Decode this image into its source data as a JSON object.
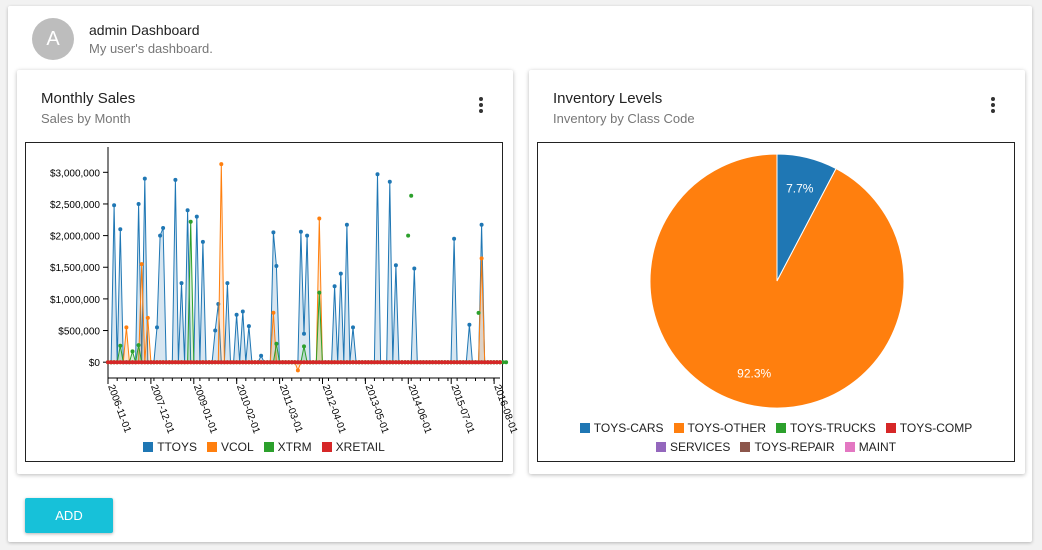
{
  "header": {
    "avatar_letter": "A",
    "title": "admin Dashboard",
    "subtitle": "My user's dashboard."
  },
  "sales_card": {
    "title": "Monthly Sales",
    "subtitle": "Sales by Month",
    "menu_icon": "more-vert-icon"
  },
  "inventory_card": {
    "title": "Inventory Levels",
    "subtitle": "Inventory by Class Code",
    "menu_icon": "more-vert-icon"
  },
  "add_button": "ADD",
  "chart_data": [
    {
      "type": "line",
      "title": "",
      "xlabel": "",
      "ylabel": "",
      "ylim": [
        -250000,
        3400000
      ],
      "yticks": [
        "$0",
        "$500,000",
        "$1,000,000",
        "$1,500,000",
        "$2,000,000",
        "$2,500,000",
        "$3,000,000"
      ],
      "ytick_values": [
        0,
        500000,
        1000000,
        1500000,
        2000000,
        2500000,
        3000000
      ],
      "xticks": [
        "2006-11-01",
        "2007-12-01",
        "2009-01-01",
        "2010-02-01",
        "2011-03-01",
        "2012-04-01",
        "2013-05-01",
        "2014-06-01",
        "2015-07-01",
        "2016-08-01"
      ],
      "legend_position": "bottom",
      "grid": false,
      "series": [
        {
          "name": "TTOYS",
          "color": "#1f77b4",
          "values": [
            0,
            0,
            2480000,
            0,
            2100000,
            0,
            0,
            0,
            0,
            0,
            2500000,
            0,
            2900000,
            0,
            0,
            0,
            550000,
            2000000,
            2120000,
            0,
            0,
            0,
            2880000,
            0,
            1250000,
            0,
            2400000,
            0,
            0,
            2300000,
            0,
            1900000,
            0,
            0,
            0,
            500000,
            920000,
            0,
            0,
            1250000,
            0,
            0,
            750000,
            0,
            800000,
            0,
            570000,
            0,
            0,
            0,
            100000,
            0,
            0,
            0,
            2050000,
            1520000,
            0,
            0,
            0,
            0,
            0,
            0,
            0,
            2060000,
            450000,
            2000000,
            0,
            0,
            0,
            0,
            0,
            0,
            0,
            0,
            1200000,
            0,
            1400000,
            0,
            2170000,
            0,
            550000,
            0,
            0,
            0,
            0,
            0,
            0,
            0,
            2970000,
            0,
            0,
            0,
            2850000,
            0,
            1530000,
            0,
            0,
            0,
            0,
            0,
            1480000,
            0,
            0,
            0,
            0,
            0,
            0,
            0,
            0,
            0,
            0,
            0,
            0,
            1950000,
            0,
            0,
            0,
            0,
            590000,
            0,
            0,
            0,
            2170000,
            0,
            0,
            0,
            0,
            0,
            0
          ]
        },
        {
          "name": "VCOL",
          "color": "#ff7f0e",
          "values": [
            0,
            0,
            0,
            0,
            0,
            0,
            550000,
            0,
            0,
            0,
            0,
            1550000,
            0,
            700000,
            0,
            0,
            0,
            0,
            0,
            0,
            0,
            0,
            0,
            0,
            0,
            0,
            0,
            0,
            0,
            0,
            0,
            0,
            0,
            0,
            0,
            0,
            0,
            3130000,
            0,
            0,
            0,
            0,
            0,
            0,
            0,
            0,
            0,
            0,
            0,
            0,
            0,
            0,
            0,
            0,
            780000,
            0,
            0,
            0,
            0,
            0,
            0,
            0,
            -130000,
            0,
            0,
            0,
            0,
            0,
            0,
            2270000,
            0,
            0,
            0,
            0,
            0,
            0,
            0,
            0,
            0,
            0,
            0,
            0,
            0,
            0,
            0,
            0,
            0,
            0,
            0,
            0,
            0,
            0,
            0,
            0,
            0,
            0,
            0,
            0,
            0,
            0,
            0,
            0,
            0,
            0,
            0,
            0,
            0,
            0,
            0,
            0,
            0,
            0,
            0,
            0,
            0,
            0,
            0,
            0,
            0,
            0,
            0,
            0,
            1640000,
            0,
            0,
            0,
            0,
            0,
            0
          ]
        },
        {
          "name": "XTRM",
          "color": "#2ca02c",
          "values": [
            0,
            0,
            0,
            0,
            260000,
            0,
            0,
            0,
            170000,
            0,
            270000,
            0,
            0,
            0,
            0,
            0,
            0,
            0,
            0,
            0,
            0,
            0,
            0,
            0,
            0,
            0,
            0,
            2220000,
            0,
            0,
            0,
            0,
            0,
            0,
            0,
            0,
            0,
            0,
            0,
            0,
            0,
            0,
            0,
            0,
            0,
            0,
            0,
            0,
            0,
            0,
            0,
            0,
            0,
            0,
            0,
            290000,
            0,
            0,
            0,
            0,
            0,
            0,
            0,
            0,
            250000,
            0,
            0,
            0,
            0,
            1100000,
            0,
            0,
            0,
            0,
            0,
            0,
            0,
            0,
            0,
            0,
            0,
            0,
            0,
            0,
            0,
            0,
            0,
            0,
            0,
            0,
            0,
            0,
            0,
            0,
            0,
            0,
            0,
            0,
            0,
            0,
            0,
            0,
            0,
            0,
            0,
            0,
            0,
            0,
            0,
            0,
            0,
            0,
            0,
            0,
            0,
            0,
            0,
            0,
            0,
            0,
            0,
            0,
            0,
            0,
            0,
            0,
            0,
            0,
            0,
            0,
            0
          ]
        },
        {
          "name": "XRETAIL",
          "color": "#d62728",
          "values": [
            0,
            0,
            0,
            0,
            0,
            0,
            0,
            0,
            0,
            0,
            0,
            0,
            0,
            0,
            0,
            0,
            0,
            0,
            0,
            0,
            0,
            0,
            0,
            0,
            0,
            0,
            0,
            0,
            0,
            0,
            0,
            0,
            0,
            0,
            0,
            0,
            0,
            0,
            0,
            0,
            0,
            0,
            0,
            0,
            0,
            0,
            0,
            0,
            0,
            0,
            0,
            0,
            0,
            0,
            0,
            0,
            0,
            0,
            0,
            0,
            0,
            0,
            0,
            0,
            0,
            0,
            0,
            0,
            0,
            0,
            0,
            0,
            0,
            0,
            0,
            0,
            0,
            0,
            0,
            0,
            0,
            0,
            0,
            0,
            0,
            0,
            0,
            0,
            0,
            0,
            0,
            0,
            0,
            0,
            0,
            0,
            0,
            0,
            0,
            0,
            0,
            0,
            0,
            0,
            0,
            0,
            0,
            0,
            0,
            0,
            0,
            0,
            0,
            0,
            0,
            0,
            0,
            0,
            0,
            0,
            0,
            0,
            0,
            0,
            0,
            0,
            0,
            0,
            0
          ]
        }
      ],
      "extra_points": [
        {
          "series": "XTRM",
          "index": 98,
          "value": 2000000
        },
        {
          "series": "XTRM",
          "index": 99,
          "value": 2630000
        },
        {
          "series": "XTRM",
          "index": 121,
          "value": 780000
        }
      ]
    },
    {
      "type": "pie",
      "title": "",
      "legend_position": "bottom",
      "slices": [
        {
          "label": "TOYS-CARS",
          "value": 7.7,
          "display": "7.7%",
          "color": "#1f77b4"
        },
        {
          "label": "TOYS-OTHER",
          "value": 92.3,
          "display": "92.3%",
          "color": "#ff7f0e"
        },
        {
          "label": "TOYS-TRUCKS",
          "value": 0,
          "display": "",
          "color": "#2ca02c"
        },
        {
          "label": "TOYS-COMP",
          "value": 0,
          "display": "",
          "color": "#d62728"
        },
        {
          "label": "SERVICES",
          "value": 0,
          "display": "",
          "color": "#9467bd"
        },
        {
          "label": "TOYS-REPAIR",
          "value": 0,
          "display": "",
          "color": "#8c564b"
        },
        {
          "label": "MAINT",
          "value": 0,
          "display": "",
          "color": "#e377c2"
        }
      ]
    }
  ]
}
